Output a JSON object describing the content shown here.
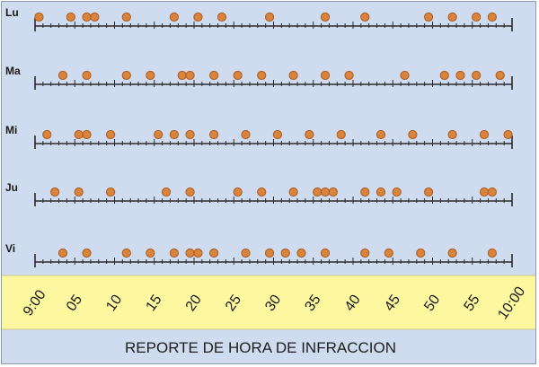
{
  "chart_data": {
    "type": "scatter",
    "title": "REPORTE DE HORA DE INFRACCION",
    "xlabel": "",
    "ylabel": "",
    "x_unit": "minutes after 9:00",
    "xlim": [
      0,
      60
    ],
    "tick_labels": [
      "9:00",
      "05",
      "10",
      "15",
      "20",
      "25",
      "30",
      "35",
      "40",
      "45",
      "50",
      "55",
      "10:00"
    ],
    "grid": false,
    "legend": "none",
    "colors": {
      "background": "#cfdcef",
      "axis_band": "#fdf7a0",
      "marker_fill": "#d9843a",
      "marker_edge": "#a85a22",
      "axis_line": "#2a2a2a"
    },
    "series": [
      {
        "name": "Lu",
        "x": [
          0.5,
          4.5,
          6.5,
          7.5,
          11.5,
          17.5,
          20.5,
          23.5,
          29.5,
          36.5,
          41.5,
          49.5,
          52.5,
          55.5,
          57.5
        ]
      },
      {
        "name": "Ma",
        "x": [
          3.5,
          6.5,
          11.5,
          14.5,
          18.5,
          19.5,
          22.5,
          25.5,
          28.5,
          32.5,
          36.5,
          39.5,
          46.5,
          51.5,
          53.5,
          55.5,
          58.5
        ]
      },
      {
        "name": "Mi",
        "x": [
          1.5,
          5.5,
          6.5,
          9.5,
          15.5,
          17.5,
          19.5,
          22.5,
          26.5,
          30.5,
          34.5,
          38.5,
          43.5,
          47.5,
          52.5,
          56.5,
          59.5
        ]
      },
      {
        "name": "Ju",
        "x": [
          2.5,
          5.5,
          9.5,
          16.5,
          19.5,
          25.5,
          28.5,
          32.5,
          35.5,
          36.5,
          37.5,
          41.5,
          43.5,
          45.5,
          49.5,
          56.5,
          57.5
        ]
      },
      {
        "name": "Vi",
        "x": [
          3.5,
          6.5,
          11.5,
          14.5,
          17.5,
          19.5,
          20.5,
          22.5,
          26.5,
          29.5,
          31.5,
          33.5,
          36.5,
          41.5,
          44.5,
          48.5,
          52.5,
          57.5
        ]
      }
    ]
  }
}
